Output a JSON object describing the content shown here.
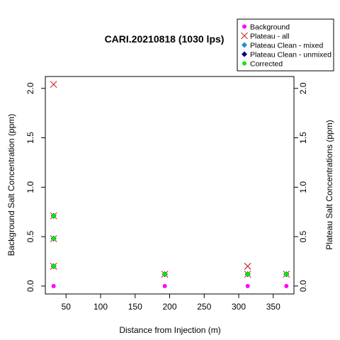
{
  "chart_data": {
    "type": "scatter",
    "title": "CARI.20210818 (1030 lps)",
    "xlabel": "Distance from Injection (m)",
    "ylabel_left": "Background Salt Concentration (ppm)",
    "ylabel_right": "Plateau Salt Concentrations (ppm)",
    "xlim": [
      20,
      380
    ],
    "ylim": [
      -0.08,
      2.12
    ],
    "x_ticks": [
      50,
      100,
      150,
      200,
      250,
      300,
      350
    ],
    "y_ticks": [
      0.0,
      0.5,
      1.0,
      1.5,
      2.0
    ],
    "y_tick_labels": [
      "0.0",
      "0.5",
      "1.0",
      "1.5",
      "2.0"
    ],
    "legend_position": "top-right",
    "grid": false,
    "series": [
      {
        "name": "Background",
        "marker": "dot",
        "color": "#ff00ff",
        "points": [
          [
            32,
            0.0
          ],
          [
            193,
            0.0
          ],
          [
            313,
            0.0
          ],
          [
            369,
            0.0
          ]
        ]
      },
      {
        "name": "Plateau - all",
        "marker": "x",
        "color": "#cc2222",
        "points": [
          [
            32,
            2.04
          ],
          [
            32,
            0.71
          ],
          [
            32,
            0.48
          ],
          [
            32,
            0.2
          ],
          [
            193,
            0.12
          ],
          [
            313,
            0.2
          ],
          [
            313,
            0.12
          ],
          [
            369,
            0.12
          ]
        ]
      },
      {
        "name": "Plateau Clean - mixed",
        "marker": "diamond",
        "color": "#1e90c8",
        "points": [
          [
            32,
            0.71
          ],
          [
            32,
            0.48
          ],
          [
            32,
            0.2
          ],
          [
            193,
            0.12
          ],
          [
            313,
            0.12
          ],
          [
            369,
            0.12
          ]
        ]
      },
      {
        "name": "Plateau Clean - unmixed",
        "marker": "diamond",
        "color": "#000080",
        "points": [
          [
            32,
            0.71
          ],
          [
            32,
            0.48
          ],
          [
            32,
            0.2
          ],
          [
            193,
            0.12
          ],
          [
            313,
            0.12
          ],
          [
            369,
            0.12
          ]
        ]
      },
      {
        "name": "Corrected",
        "marker": "dot",
        "color": "#00ee00",
        "points": [
          [
            32,
            0.71
          ],
          [
            32,
            0.48
          ],
          [
            32,
            0.2
          ],
          [
            193,
            0.12
          ],
          [
            313,
            0.12
          ],
          [
            369,
            0.12
          ]
        ]
      }
    ]
  }
}
